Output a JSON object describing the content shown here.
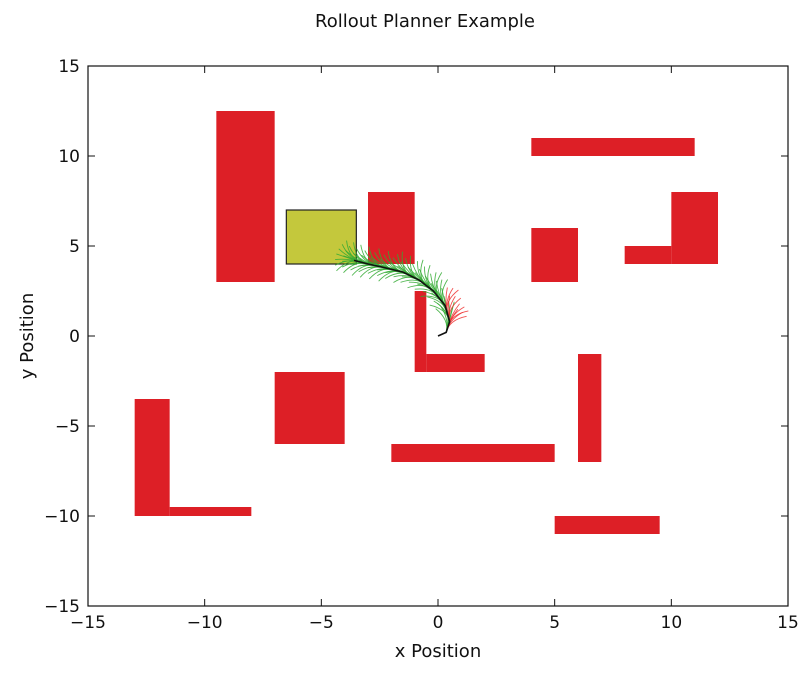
{
  "chart_data": {
    "type": "scatter",
    "title": "Rollout Planner Example",
    "xlabel": "x Position",
    "ylabel": "y Position",
    "xlim": [
      -15,
      15
    ],
    "ylim": [
      -15,
      15
    ],
    "xticks": [
      -15,
      -10,
      -5,
      0,
      5,
      10,
      15
    ],
    "yticks": [
      -15,
      -10,
      -5,
      0,
      5,
      10,
      15
    ],
    "xtick_labels": [
      "−15",
      "−10",
      "−5",
      "0",
      "5",
      "10",
      "15"
    ],
    "ytick_labels": [
      "−15",
      "−10",
      "−5",
      "0",
      "5",
      "10",
      "15"
    ],
    "grid": false,
    "colors": {
      "obstacle": "#dd1f26",
      "goal": "#c4c83c",
      "goal_edge": "#222222",
      "path": "#111111",
      "rollout_valid": "#33aa33",
      "rollout_collision": "#ee3333"
    },
    "obstacles": [
      {
        "x0": -9.5,
        "x1": -7.0,
        "y0": 3.0,
        "y1": 12.5
      },
      {
        "x0": -3.0,
        "x1": -1.0,
        "y0": 4.0,
        "y1": 8.0
      },
      {
        "x0": -1.0,
        "x1": -0.5,
        "y0": -2.0,
        "y1": 2.5
      },
      {
        "x0": -0.5,
        "x1": 2.0,
        "y0": -2.0,
        "y1": -1.0
      },
      {
        "x0": 4.0,
        "x1": 11.0,
        "y0": 10.0,
        "y1": 11.0
      },
      {
        "x0": 4.0,
        "x1": 6.0,
        "y0": 3.0,
        "y1": 6.0
      },
      {
        "x0": 8.0,
        "x1": 10.0,
        "y0": 4.0,
        "y1": 5.0
      },
      {
        "x0": 10.0,
        "x1": 12.0,
        "y0": 4.0,
        "y1": 8.0
      },
      {
        "x0": -7.0,
        "x1": -4.0,
        "y0": -6.0,
        "y1": -2.0
      },
      {
        "x0": -13.0,
        "x1": -11.5,
        "y0": -10.0,
        "y1": -3.5
      },
      {
        "x0": -11.5,
        "x1": -8.0,
        "y0": -10.0,
        "y1": -9.5
      },
      {
        "x0": -2.0,
        "x1": 5.0,
        "y0": -7.0,
        "y1": -6.0
      },
      {
        "x0": 6.0,
        "x1": 7.0,
        "y0": -7.0,
        "y1": -1.0
      },
      {
        "x0": 5.0,
        "x1": 9.5,
        "y0": -11.0,
        "y1": -10.0
      }
    ],
    "goal": {
      "x0": -6.5,
      "x1": -3.5,
      "y0": 4.0,
      "y1": 7.0
    },
    "path": {
      "x": [
        0.0,
        0.35,
        0.5,
        0.3,
        -0.2,
        -0.8,
        -1.5,
        -2.3,
        -3.0,
        -3.6
      ],
      "y": [
        0.0,
        0.2,
        0.8,
        1.7,
        2.5,
        3.1,
        3.55,
        3.8,
        4.0,
        4.2
      ]
    }
  }
}
